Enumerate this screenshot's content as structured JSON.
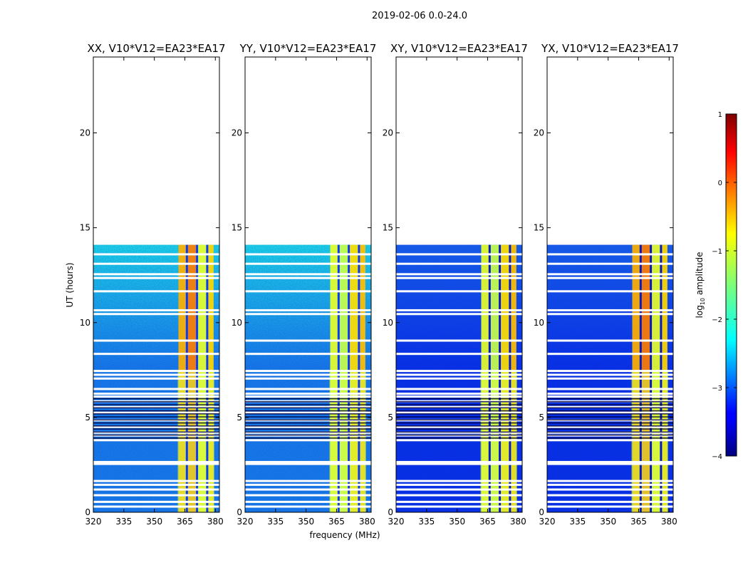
{
  "chart_data": {
    "type": "heatmap",
    "suptitle": "2019-02-06 0.0-24.0",
    "xlabel": "frequency (MHz)",
    "ylabel": "UT (hours)",
    "xlim": [
      320,
      382
    ],
    "ylim": [
      0,
      24
    ],
    "xticks": [
      320,
      335,
      350,
      365,
      380
    ],
    "yticks": [
      0,
      5,
      10,
      15,
      20
    ],
    "data_extent_hours": [
      0,
      14.1
    ],
    "rfi_band_mhz": [
      361.5,
      379.5
    ],
    "rfi_band_gaps_mhz": [
      366,
      371,
      376
    ],
    "flagged_rows_hours": [
      0.3,
      0.55,
      0.9,
      1.2,
      1.45,
      1.65,
      2.55,
      2.65,
      3.8,
      4.05,
      4.2,
      4.5,
      4.85,
      5.25,
      5.55,
      5.85,
      6.1,
      6.25,
      6.5,
      7.05,
      7.25,
      7.45,
      8.35,
      9.05,
      10.45,
      10.65,
      11.65,
      12.35,
      12.55,
      13.1,
      13.6
    ],
    "panels": [
      {
        "title": "XX, V10*V12=EA23*EA17",
        "background": "cyan-blue",
        "band_level": "high"
      },
      {
        "title": "YY, V10*V12=EA23*EA17",
        "background": "cyan-blue",
        "band_level": "medium"
      },
      {
        "title": "XY, V10*V12=EA23*EA17",
        "background": "deep-blue",
        "band_level": "medium"
      },
      {
        "title": "YX, V10*V12=EA23*EA17",
        "background": "deep-blue",
        "band_level": "high"
      }
    ],
    "colorbar": {
      "label": "log10 amplitude",
      "range": [
        -4,
        1
      ],
      "ticks": [
        -4,
        -3,
        -2,
        -1,
        0,
        1
      ],
      "tick_labels": [
        "−4",
        "−3",
        "−2",
        "−1",
        "0",
        "1"
      ],
      "colormap": "jet"
    }
  }
}
